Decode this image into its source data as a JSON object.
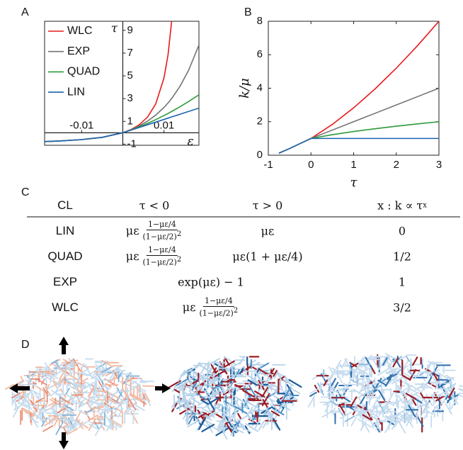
{
  "panel_labels": {
    "a": "A",
    "b": "B",
    "c": "C",
    "d": "D"
  },
  "chart_data": [
    {
      "type": "line",
      "xlabel": "ε",
      "ylabel": "τ",
      "x": [
        -0.019,
        -0.015,
        -0.01,
        -0.005,
        0,
        0.002,
        0.004,
        0.006,
        0.008,
        0.01,
        0.011,
        0.012,
        0.014,
        0.016,
        0.0185
      ],
      "series": [
        {
          "name": "WLC",
          "color": "#e8191b",
          "values": [
            -0.776,
            -0.716,
            -0.602,
            -0.401,
            0,
            0.283,
            0.704,
            1.374,
            2.534,
            4.807,
            6.866,
            10.26,
            null,
            null,
            null
          ]
        },
        {
          "name": "EXP",
          "color": "#737373",
          "values": [
            -0.776,
            -0.716,
            -0.602,
            -0.401,
            0,
            0.264,
            0.597,
            1.018,
            1.55,
            2.222,
            2.622,
            3.071,
            4.145,
            5.501,
            7.71
          ]
        },
        {
          "name": "QUAD",
          "color": "#2e9a3a",
          "values": [
            -0.776,
            -0.716,
            -0.602,
            -0.401,
            0,
            0.248,
            0.523,
            0.825,
            1.155,
            1.512,
            1.701,
            1.897,
            2.309,
            2.748,
            3.336
          ]
        },
        {
          "name": "LIN",
          "color": "#1f63b0",
          "values": [
            -0.776,
            -0.716,
            -0.602,
            -0.401,
            0,
            0.234,
            0.468,
            0.702,
            0.936,
            1.17,
            1.287,
            1.404,
            1.638,
            1.872,
            2.165
          ]
        }
      ],
      "xlim": [
        -0.019,
        0.0185
      ],
      "ylim": [
        -1.1,
        9.8
      ],
      "xticks": [
        -0.01,
        0.01
      ],
      "yticks": [
        -1,
        1,
        3,
        5,
        7,
        9
      ],
      "axes_at_zero": true,
      "legend": "upper left"
    },
    {
      "type": "line",
      "xlabel": "τ",
      "ylabel": "k/μ",
      "x": [
        -0.75,
        -0.5,
        -0.25,
        0,
        0.5,
        1,
        1.5,
        2,
        2.5,
        3
      ],
      "series": [
        {
          "color": "#e8191b",
          "values": [
            0.12,
            0.4,
            0.7,
            1,
            1.837,
            2.828,
            3.953,
            5.196,
            6.547,
            8
          ]
        },
        {
          "color": "#737373",
          "values": [
            0.12,
            0.4,
            0.7,
            1,
            1.5,
            2,
            2.5,
            3,
            3.5,
            4
          ]
        },
        {
          "color": "#2e9a3a",
          "values": [
            0.12,
            0.4,
            0.7,
            1,
            1.225,
            1.414,
            1.581,
            1.732,
            1.871,
            2
          ]
        },
        {
          "color": "#1f63b0",
          "values": [
            0.12,
            0.4,
            0.7,
            1,
            1,
            1,
            1,
            1,
            1,
            1
          ]
        }
      ],
      "xlim": [
        -1,
        3
      ],
      "ylim": [
        0,
        8
      ],
      "xticks": [
        -1,
        0,
        1,
        2,
        3
      ],
      "yticks": [
        0,
        2,
        4,
        6,
        8
      ],
      "axes_at_zero": false
    }
  ],
  "table": {
    "header": [
      "CL",
      "τ < 0",
      "τ > 0",
      {
        "text": "x : k ∝ τ",
        "sup": "x"
      }
    ],
    "rows": [
      {
        "cl": "LIN",
        "neg": {
          "prefix": "με",
          "num": "1−με/4",
          "den": "(1−με/2)",
          "den_exp": "2"
        },
        "pos": "με",
        "x": "0"
      },
      {
        "cl": "QUAD",
        "neg": {
          "prefix": "με",
          "num": "1−με/4",
          "den": "(1−με/2)",
          "den_exp": "2"
        },
        "pos": "με(1 + με/4)",
        "x": "1/2"
      },
      {
        "cl": "EXP",
        "both": "exp(με) − 1",
        "x": "1"
      },
      {
        "cl": "WLC",
        "both": {
          "prefix": "με",
          "num": "1−με/4",
          "den": "(1−με/2)",
          "den_exp": "2"
        },
        "x": "3/2"
      }
    ]
  }
}
